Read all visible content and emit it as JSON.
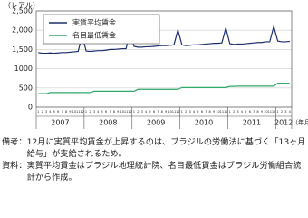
{
  "chart_data": {
    "type": "line",
    "y_label": "（レアル）",
    "x_label": "（年月）",
    "categories": [
      "1",
      "2",
      "3",
      "4",
      "5",
      "6",
      "7",
      "8",
      "9",
      "10",
      "11",
      "12",
      "1",
      "2",
      "3",
      "4",
      "5",
      "6",
      "7",
      "8",
      "9",
      "10",
      "11",
      "12",
      "1",
      "2",
      "3",
      "4",
      "5",
      "6",
      "7",
      "8",
      "9",
      "10",
      "11",
      "12",
      "1",
      "2",
      "3",
      "4",
      "5",
      "6",
      "7",
      "8",
      "9",
      "10",
      "11",
      "12",
      "1",
      "2",
      "3",
      "4",
      "5",
      "6",
      "7",
      "8",
      "9",
      "10",
      "11",
      "12",
      "1",
      "2",
      "3",
      "4"
    ],
    "years": [
      "2007",
      "2008",
      "2009",
      "2010",
      "2011",
      "2012"
    ],
    "ylim": [
      0,
      2500
    ],
    "yticks": [
      0,
      500,
      1000,
      {
        "value": 1500,
        "label": "1,500"
      },
      {
        "value": 2000,
        "label": "2,000"
      },
      {
        "value": 2500,
        "label": "2,500"
      }
    ],
    "grid": true,
    "series": [
      {
        "name": "実質平均賃金",
        "color": "#1f2f6e",
        "values": [
          1420,
          1400,
          1400,
          1410,
          1400,
          1410,
          1420,
          1420,
          1430,
          1440,
          1450,
          1870,
          1460,
          1450,
          1460,
          1470,
          1470,
          1480,
          1500,
          1500,
          1510,
          1520,
          1520,
          1950,
          1580,
          1560,
          1560,
          1570,
          1570,
          1580,
          1590,
          1600,
          1600,
          1610,
          1620,
          2010,
          1620,
          1600,
          1610,
          1620,
          1620,
          1630,
          1640,
          1650,
          1660,
          1660,
          1670,
          2060,
          1650,
          1630,
          1640,
          1640,
          1650,
          1660,
          1670,
          1680,
          1680,
          1700,
          1700,
          2100,
          1720,
          1700,
          1700,
          1710
        ]
      },
      {
        "name": "名目最低賃金",
        "color": "#2fa86a",
        "values": [
          350,
          350,
          350,
          380,
          380,
          380,
          380,
          380,
          380,
          380,
          380,
          380,
          380,
          380,
          415,
          415,
          415,
          415,
          415,
          415,
          415,
          415,
          415,
          415,
          415,
          465,
          465,
          465,
          465,
          465,
          465,
          465,
          465,
          465,
          465,
          465,
          510,
          510,
          510,
          510,
          510,
          510,
          510,
          510,
          510,
          510,
          510,
          510,
          540,
          540,
          545,
          545,
          545,
          545,
          545,
          545,
          545,
          545,
          545,
          545,
          622,
          622,
          622,
          622
        ]
      }
    ]
  },
  "notes": [
    {
      "label": "備考：",
      "text": "12月に実質平均賃金が上昇するのは、ブラジルの労働法に基づく「13ヶ月給与」が支給されるため。"
    },
    {
      "label": "資料：",
      "text": "実質平均賃金はブラジル地理統計院、名目最低賃金はブラジル労働組合統計から作成。"
    }
  ]
}
